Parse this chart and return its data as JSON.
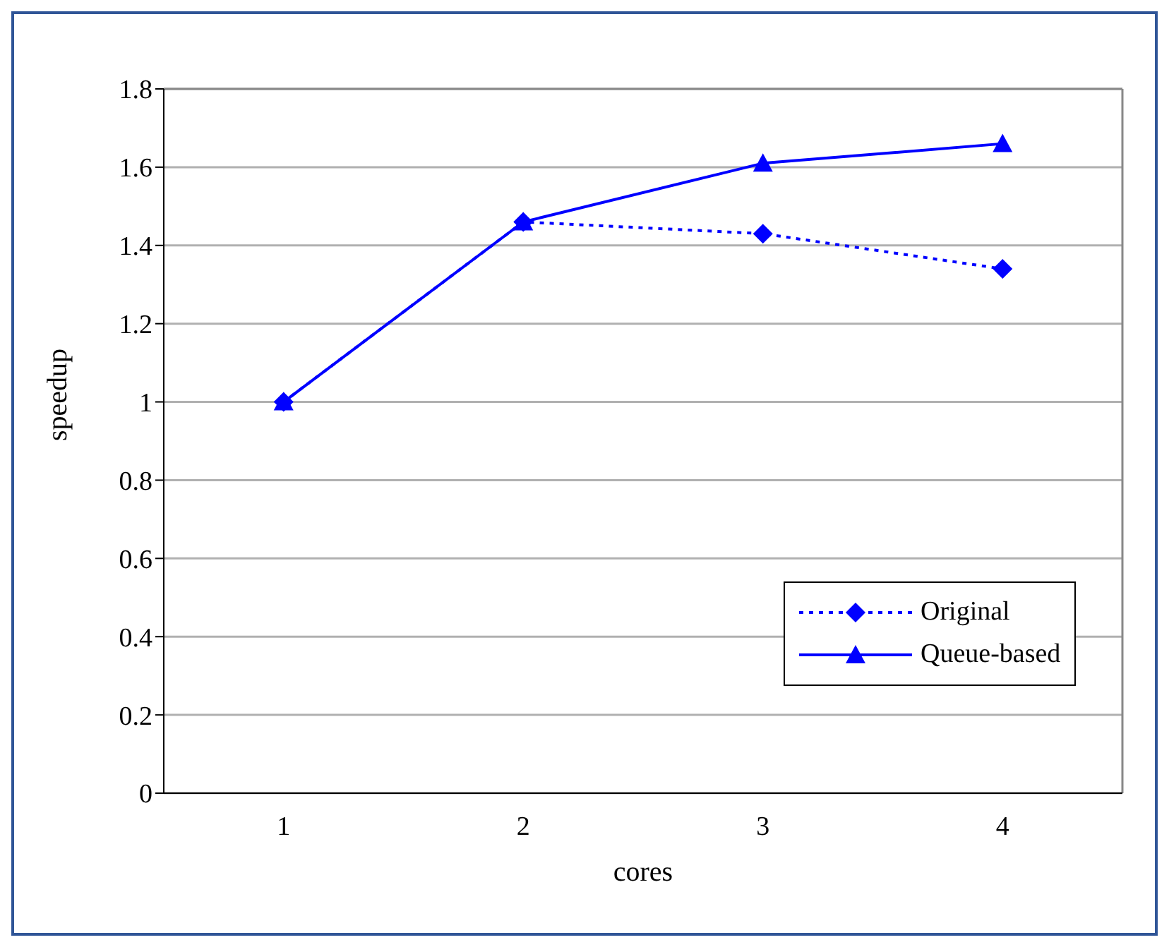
{
  "chart_data": {
    "type": "line",
    "xlabel": "cores",
    "ylabel": "speedup",
    "categories": [
      "1",
      "2",
      "3",
      "4"
    ],
    "series": [
      {
        "name": "Original",
        "color": "#0000ff",
        "values": [
          1.0,
          1.46,
          1.43,
          1.34
        ],
        "marker": "diamond",
        "line_style": "dotted"
      },
      {
        "name": "Queue-based",
        "color": "#0000ff",
        "values": [
          1.0,
          1.46,
          1.61,
          1.66
        ],
        "marker": "triangle",
        "line_style": "solid"
      }
    ],
    "ylim": [
      0,
      1.8
    ],
    "yticks": [
      0,
      0.2,
      0.4,
      0.6,
      0.8,
      1,
      1.2,
      1.4,
      1.6,
      1.8
    ],
    "grid": "y",
    "legend": "bottom right"
  }
}
